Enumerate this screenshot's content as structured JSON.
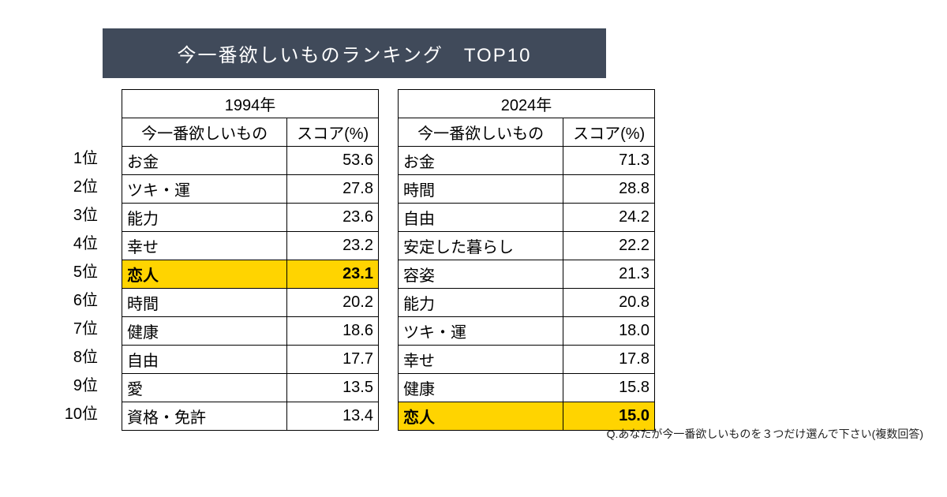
{
  "title": "今一番欲しいものランキング　TOP10",
  "colors": {
    "title_bg": "#404a5a",
    "title_fg": "#ffffff",
    "highlight": "#ffd400",
    "border": "#000000"
  },
  "column_headers": {
    "item": "今一番欲しいもの",
    "score": "スコア(%)"
  },
  "ranks": [
    "1位",
    "2位",
    "3位",
    "4位",
    "5位",
    "6位",
    "7位",
    "8位",
    "9位",
    "10位"
  ],
  "left": {
    "year": "1994年",
    "rows": [
      {
        "item": "お金",
        "score": "53.6",
        "highlight": false
      },
      {
        "item": "ツキ・運",
        "score": "27.8",
        "highlight": false
      },
      {
        "item": "能力",
        "score": "23.6",
        "highlight": false
      },
      {
        "item": "幸せ",
        "score": "23.2",
        "highlight": false
      },
      {
        "item": "恋人",
        "score": "23.1",
        "highlight": true
      },
      {
        "item": "時間",
        "score": "20.2",
        "highlight": false
      },
      {
        "item": "健康",
        "score": "18.6",
        "highlight": false
      },
      {
        "item": "自由",
        "score": "17.7",
        "highlight": false
      },
      {
        "item": "愛",
        "score": "13.5",
        "highlight": false
      },
      {
        "item": "資格・免許",
        "score": "13.4",
        "highlight": false
      }
    ]
  },
  "right": {
    "year": "2024年",
    "rows": [
      {
        "item": "お金",
        "score": "71.3",
        "highlight": false
      },
      {
        "item": "時間",
        "score": "28.8",
        "highlight": false
      },
      {
        "item": "自由",
        "score": "24.2",
        "highlight": false
      },
      {
        "item": "安定した暮らし",
        "score": "22.2",
        "highlight": false
      },
      {
        "item": "容姿",
        "score": "21.3",
        "highlight": false
      },
      {
        "item": "能力",
        "score": "20.8",
        "highlight": false
      },
      {
        "item": "ツキ・運",
        "score": "18.0",
        "highlight": false
      },
      {
        "item": "幸せ",
        "score": "17.8",
        "highlight": false
      },
      {
        "item": "健康",
        "score": "15.8",
        "highlight": false
      },
      {
        "item": "恋人",
        "score": "15.0",
        "highlight": true
      }
    ]
  },
  "footnote": "Q.あなたが今一番欲しいものを３つだけ選んで下さい(複数回答)"
}
